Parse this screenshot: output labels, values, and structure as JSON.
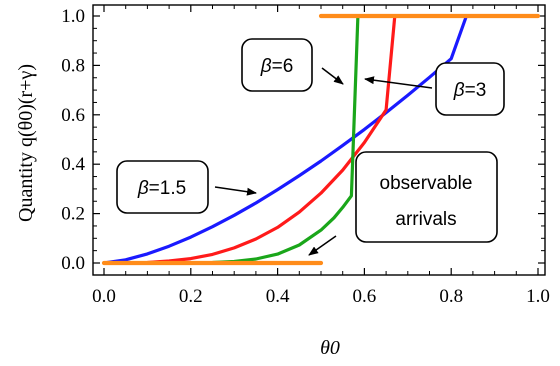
{
  "chart_data": {
    "type": "line",
    "xlabel": "θ0",
    "ylabel": "Quantity q(θ0)(r+γ)",
    "xlim": [
      0,
      1
    ],
    "ylim": [
      0,
      1
    ],
    "xticks": [
      "0.0",
      "0.2",
      "0.4",
      "0.6",
      "0.8",
      "1.0"
    ],
    "yticks": [
      "0.0",
      "0.2",
      "0.4",
      "0.6",
      "0.8",
      "1.0"
    ],
    "grid": false,
    "series": [
      {
        "name": "β=1.5",
        "color": "#1a1aff",
        "x": [
          0.0,
          0.05,
          0.1,
          0.15,
          0.2,
          0.25,
          0.3,
          0.35,
          0.4,
          0.45,
          0.5,
          0.55,
          0.6,
          0.65,
          0.7,
          0.75,
          0.8,
          0.835
        ],
        "y": [
          0.0,
          0.013,
          0.037,
          0.068,
          0.105,
          0.147,
          0.193,
          0.243,
          0.297,
          0.354,
          0.413,
          0.476,
          0.541,
          0.609,
          0.679,
          0.752,
          0.827,
          1.0
        ]
      },
      {
        "name": "β=3",
        "color": "#ff1a1a",
        "x": [
          0.0,
          0.05,
          0.1,
          0.15,
          0.2,
          0.25,
          0.3,
          0.35,
          0.4,
          0.45,
          0.5,
          0.55,
          0.6,
          0.65,
          0.67
        ],
        "y": [
          0.0,
          0.0,
          0.002,
          0.008,
          0.018,
          0.035,
          0.061,
          0.097,
          0.144,
          0.206,
          0.283,
          0.376,
          0.488,
          0.62,
          1.0
        ]
      },
      {
        "name": "β=6",
        "color": "#1aa61a",
        "x": [
          0.0,
          0.1,
          0.2,
          0.25,
          0.3,
          0.35,
          0.4,
          0.45,
          0.5,
          0.53,
          0.55,
          0.57,
          0.585
        ],
        "y": [
          0.0,
          0.0,
          0.0,
          0.002,
          0.006,
          0.016,
          0.036,
          0.073,
          0.133,
          0.183,
          0.225,
          0.272,
          1.0
        ]
      },
      {
        "name": "observable arrivals",
        "color": "#ff8c1a",
        "segments": [
          {
            "x": [
              0.0,
              0.5
            ],
            "y": [
              0.0,
              0.0
            ]
          },
          {
            "x": [
              0.5,
              1.0
            ],
            "y": [
              1.0,
              1.0
            ]
          }
        ]
      }
    ],
    "annotations": [
      {
        "text": "β=6",
        "italic_prefix": "β",
        "rest": "=6"
      },
      {
        "text": "β=3",
        "italic_prefix": "β",
        "rest": "=3"
      },
      {
        "text": "β=1.5",
        "italic_prefix": "β",
        "rest": "=1.5"
      },
      {
        "text_lines": [
          "observable",
          "arrivals"
        ]
      }
    ]
  }
}
